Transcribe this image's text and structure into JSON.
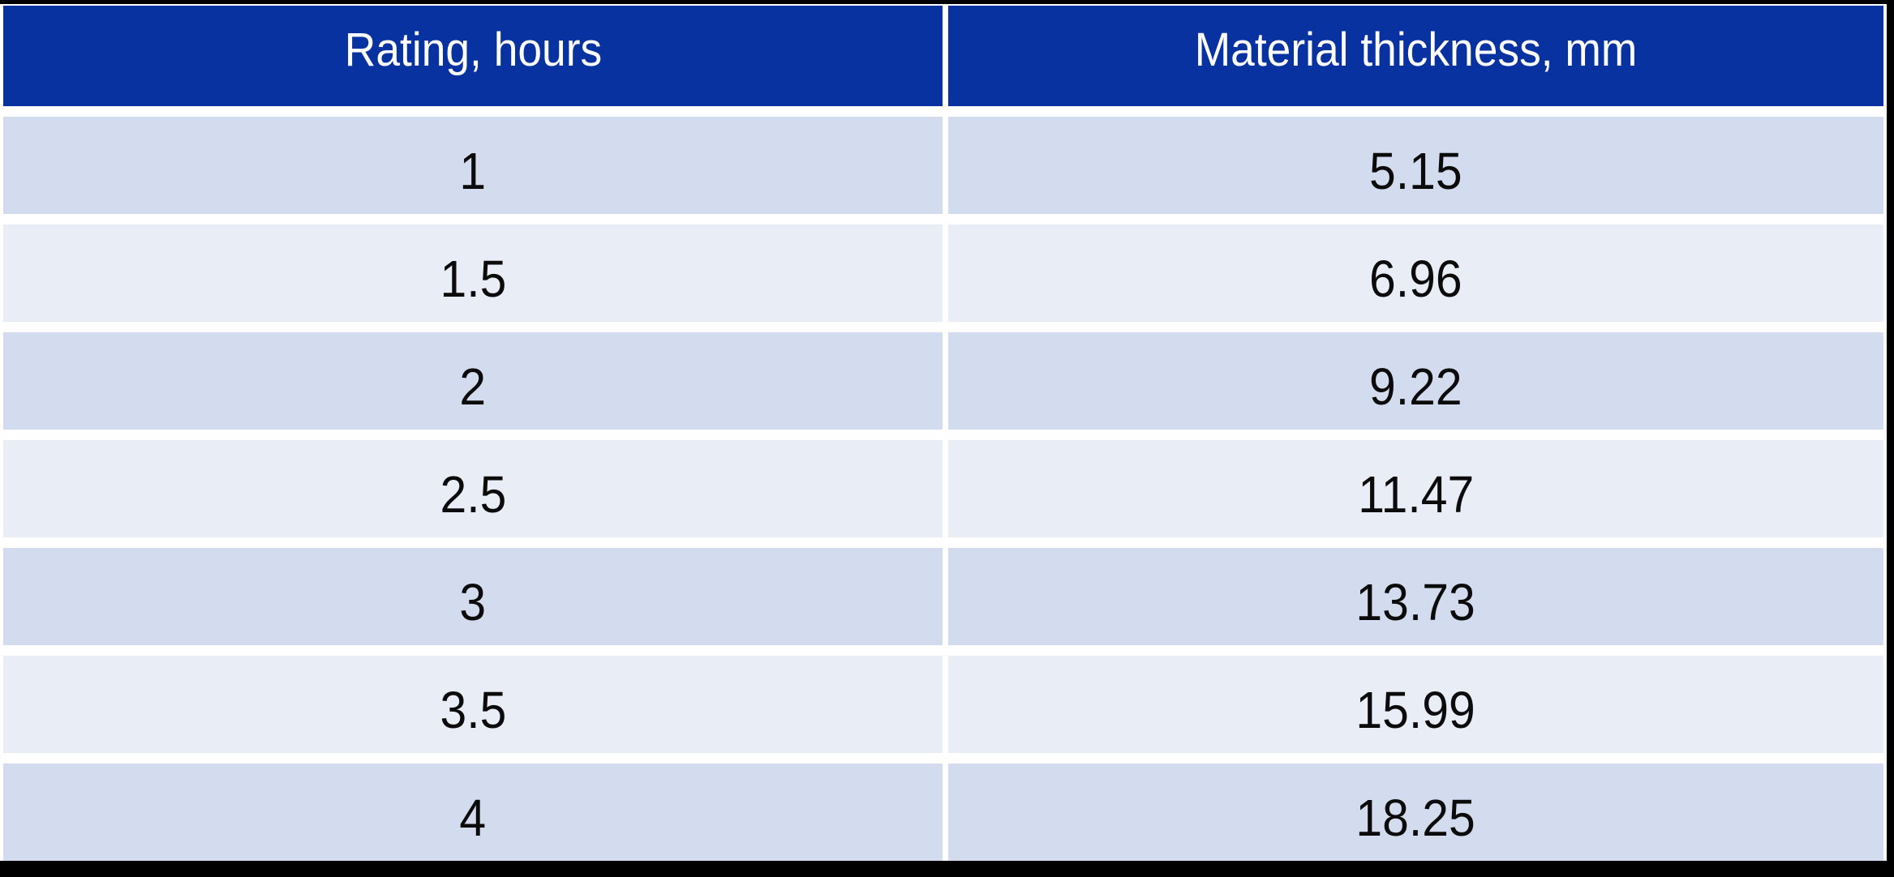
{
  "table": {
    "header": {
      "rating_label": "Rating, hours",
      "thickness_label": "Material thickness, mm"
    },
    "rows": [
      {
        "rating": "1",
        "thickness": "5.15"
      },
      {
        "rating": "1.5",
        "thickness": "6.96"
      },
      {
        "rating": "2",
        "thickness": "9.22"
      },
      {
        "rating": "2.5",
        "thickness": "11.47"
      },
      {
        "rating": "3",
        "thickness": "13.73"
      },
      {
        "rating": "3.5",
        "thickness": "15.99"
      },
      {
        "rating": "4",
        "thickness": "18.25"
      }
    ],
    "colors": {
      "header_bg": "#0832A0",
      "header_text": "#FFFFFF",
      "row_band_dark": "#D2DCEE",
      "row_band_light": "#E9EDF6",
      "gutter": "#FFFFFF",
      "frame": "#000000",
      "data_text": "#0B0B0B"
    }
  },
  "chart_data": {
    "type": "table",
    "title": "",
    "columns": [
      "Rating, hours",
      "Material thickness, mm"
    ],
    "rows": [
      [
        1,
        5.15
      ],
      [
        1.5,
        6.96
      ],
      [
        2,
        9.22
      ],
      [
        2.5,
        11.47
      ],
      [
        3,
        13.73
      ],
      [
        3.5,
        15.99
      ],
      [
        4,
        18.25
      ]
    ]
  }
}
